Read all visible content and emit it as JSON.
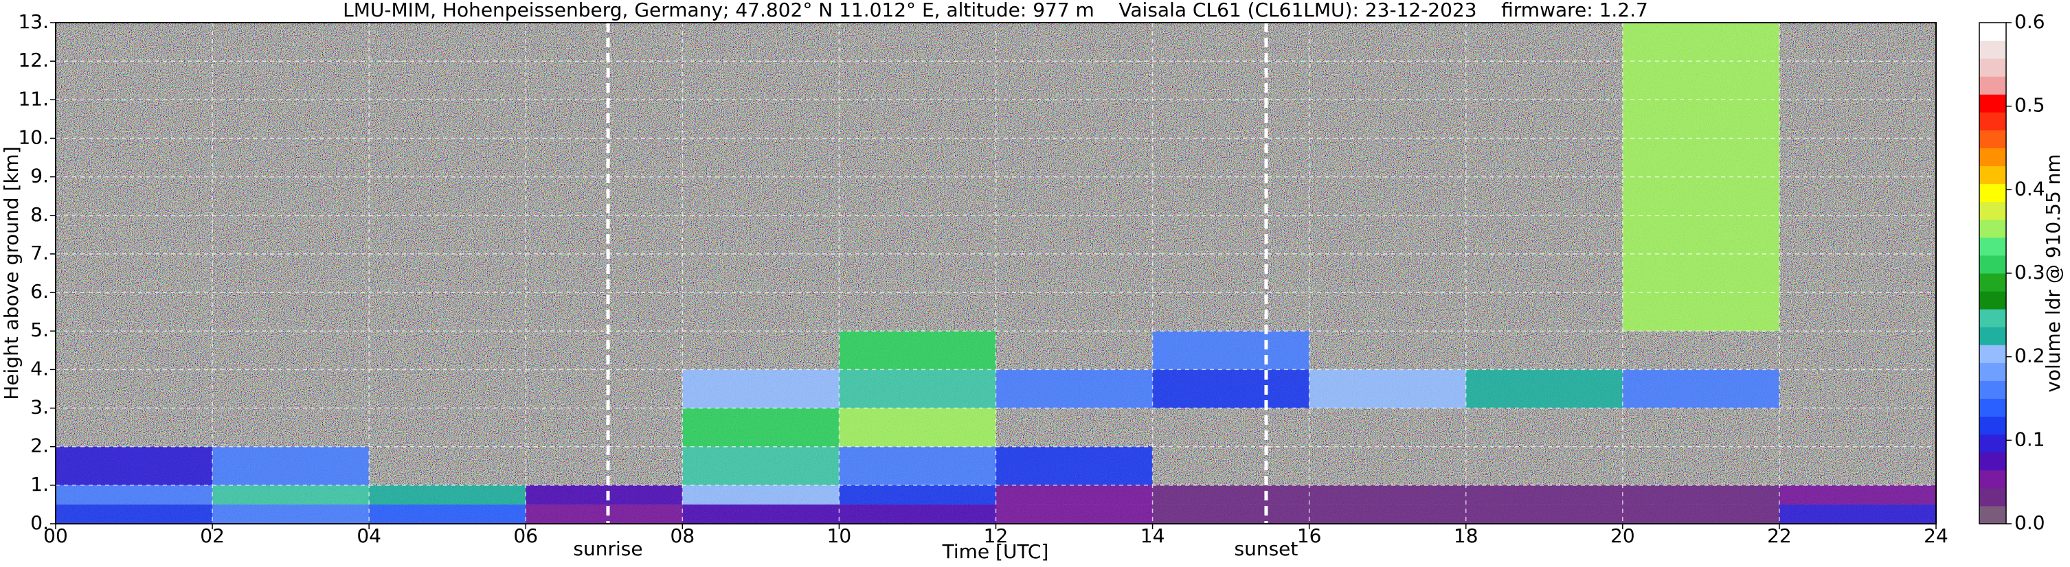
{
  "chart_data": {
    "type": "heatmap",
    "title": "LMU-MIM, Hohenpeissenberg, Germany; 47.802° N 11.012° E, altitude: 977 m    Vaisala CL61 (CL61LMU): 23-12-2023    firmware: 1.2.7",
    "xlabel": "Time [UTC]",
    "ylabel": "Height above ground [km]",
    "colorbar_label": "volume ldr @ 910.55 nm",
    "xbins": [
      0,
      2,
      4,
      6,
      8,
      10,
      12,
      14,
      16,
      18,
      20,
      22,
      24
    ],
    "ybins": [
      0,
      0.5,
      1,
      2,
      3,
      4,
      5,
      13
    ],
    "values": [
      [
        0.12,
        0.15,
        0.13,
        0.05,
        0.08,
        0.07,
        0.05,
        0.03,
        0.03,
        0.03,
        0.03,
        0.1
      ],
      [
        0.15,
        0.25,
        0.22,
        0.08,
        0.2,
        0.12,
        0.06,
        0.03,
        0.03,
        0.03,
        0.03,
        0.05
      ],
      [
        0.1,
        0.15,
        null,
        null,
        0.25,
        0.15,
        0.12,
        null,
        null,
        null,
        null,
        null
      ],
      [
        null,
        null,
        null,
        null,
        0.3,
        0.35,
        null,
        null,
        null,
        null,
        null,
        null
      ],
      [
        null,
        null,
        null,
        null,
        0.2,
        0.25,
        0.15,
        0.12,
        0.2,
        0.22,
        0.15,
        null
      ],
      [
        null,
        null,
        null,
        null,
        null,
        0.3,
        null,
        0.15,
        null,
        null,
        null,
        null
      ],
      [
        null,
        null,
        null,
        null,
        null,
        null,
        null,
        null,
        null,
        null,
        0.35,
        null
      ]
    ],
    "xlim": [
      0,
      24
    ],
    "xticks": [
      {
        "value": 0,
        "label": "00"
      },
      {
        "value": 2,
        "label": "02"
      },
      {
        "value": 4,
        "label": "04"
      },
      {
        "value": 6,
        "label": "06"
      },
      {
        "value": 8,
        "label": "08"
      },
      10,
      12,
      14,
      16,
      18,
      20,
      22,
      24
    ],
    "ylim": [
      0,
      13
    ],
    "yticks": [
      {
        "value": 0,
        "label": "0."
      },
      {
        "value": 1,
        "label": "1."
      },
      {
        "value": 2,
        "label": "2."
      },
      {
        "value": 3,
        "label": "3."
      },
      {
        "value": 4,
        "label": "4."
      },
      {
        "value": 5,
        "label": "5."
      },
      {
        "value": 6,
        "label": "6."
      },
      {
        "value": 7,
        "label": "7."
      },
      {
        "value": 8,
        "label": "8."
      },
      {
        "value": 9,
        "label": "9."
      },
      {
        "value": 10,
        "label": "10."
      },
      {
        "value": 11,
        "label": "11."
      },
      {
        "value": 12,
        "label": "12."
      },
      {
        "value": 13,
        "label": "13."
      }
    ],
    "clim": [
      0,
      0.6
    ],
    "cticks": [
      {
        "value": 0,
        "label": "0.0"
      },
      0.1,
      0.2,
      0.3,
      0.4,
      0.5,
      0.6
    ],
    "colormap": [
      "#7b5b7b",
      "#6e2c86",
      "#7a1aa0",
      "#5010b8",
      "#3020d8",
      "#1e3cf0",
      "#2a60ff",
      "#4a80ff",
      "#6fa0ff",
      "#94bcff",
      "#20b0a0",
      "#40c8a8",
      "#108c10",
      "#20a820",
      "#30d060",
      "#50e880",
      "#a0f060",
      "#d8f040",
      "#ffff00",
      "#ffc000",
      "#ff9000",
      "#ff6010",
      "#ff3010",
      "#ff0000",
      "#f0a0a0",
      "#f0c8c8",
      "#f0e0e0",
      "#ffffff"
    ],
    "grid": true,
    "annotations": [
      {
        "text": "sunrise",
        "x": 7.05
      },
      {
        "text": "sunset",
        "x": 15.45
      }
    ]
  }
}
